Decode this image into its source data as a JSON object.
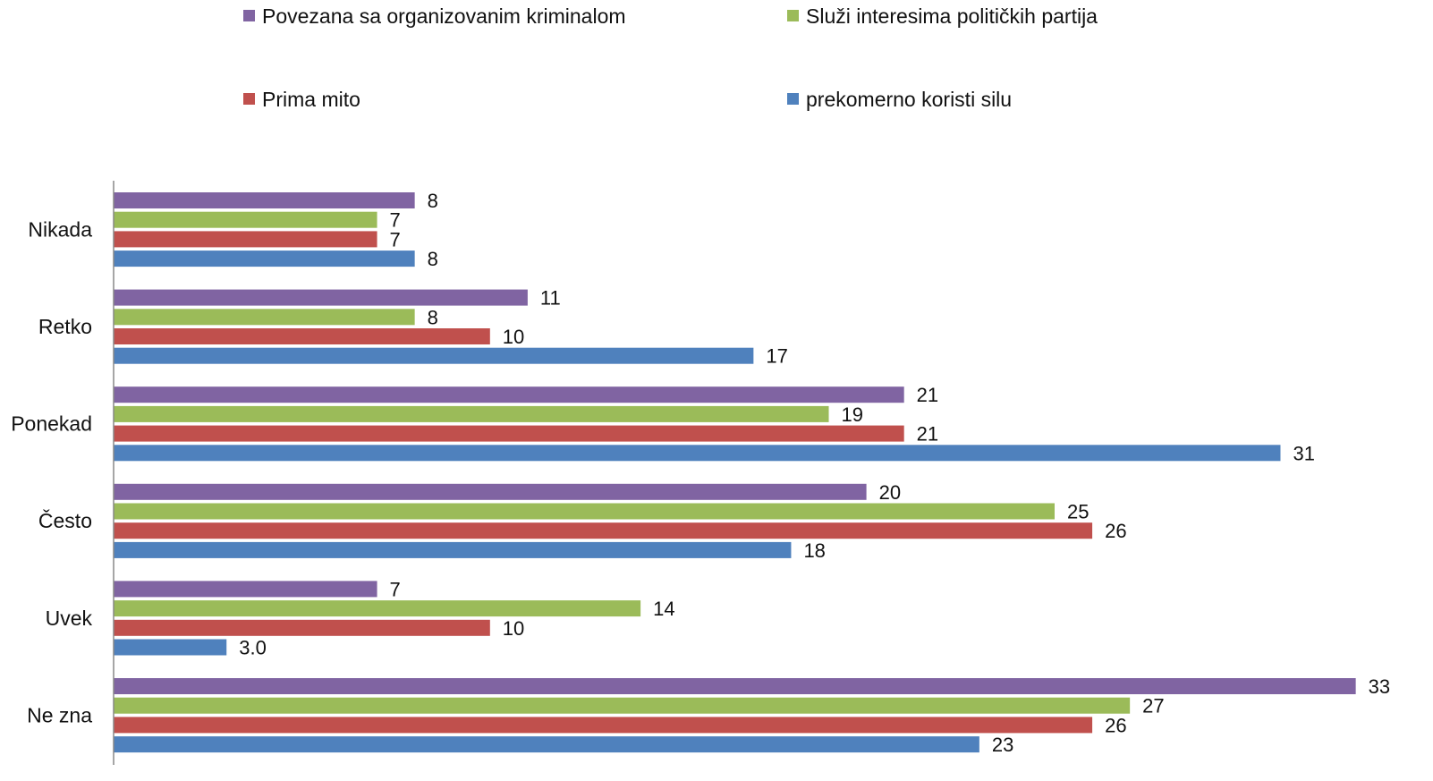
{
  "chart_data": {
    "type": "bar",
    "orientation": "horizontal",
    "categories": [
      "Nikada",
      "Retko",
      "Ponekad",
      "Često",
      "Uvek",
      "Ne zna"
    ],
    "series": [
      {
        "name": "Povezana sa organizovanim kriminalom",
        "color": "#8064a2",
        "values": [
          8,
          11,
          21,
          20,
          7,
          33
        ],
        "labels": [
          "8",
          "11",
          "21",
          "20",
          "7",
          "33"
        ]
      },
      {
        "name": "Služi interesima političkih partija",
        "color": "#9bbb59",
        "values": [
          7,
          8,
          19,
          25,
          14,
          27
        ],
        "labels": [
          "7",
          "8",
          "19",
          "25",
          "14",
          "27"
        ]
      },
      {
        "name": "Prima mito",
        "color": "#c0504d",
        "values": [
          7,
          10,
          21,
          26,
          10,
          26
        ],
        "labels": [
          "7",
          "10",
          "21",
          "26",
          "10",
          "26"
        ]
      },
      {
        "name": "prekomerno koristi silu",
        "color": "#4f81bd",
        "values": [
          8,
          17,
          31,
          18,
          3.0,
          23
        ],
        "labels": [
          "8",
          "17",
          "31",
          "18",
          "3.0",
          "23"
        ]
      }
    ],
    "xlim": [
      0,
      33
    ],
    "legend_position": "top",
    "grid": false,
    "title": "",
    "xlabel": "",
    "ylabel": ""
  }
}
